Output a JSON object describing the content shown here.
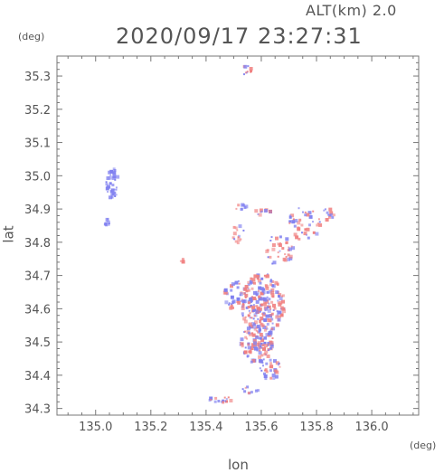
{
  "header": {
    "alt_label": "ALT(km)  2.0",
    "datetime": "2020/09/17 23:27:31"
  },
  "axes": {
    "y_unit": "(deg)",
    "x_unit": "(deg)",
    "xlabel": "lon",
    "ylabel": "lat"
  },
  "colors": {
    "frame": "#777777",
    "positive": "#f08080",
    "negative": "#8080f0"
  },
  "chart_data": {
    "type": "scatter",
    "xlabel": "lon",
    "ylabel": "lat",
    "xlim": [
      134.86,
      136.17
    ],
    "ylim": [
      34.28,
      35.36
    ],
    "x_ticks": [
      135.0,
      135.2,
      135.4,
      135.6,
      135.8,
      136.0
    ],
    "x_tick_labels": [
      "135.0",
      "135.2",
      "135.4",
      "135.6",
      "135.8",
      "136.0"
    ],
    "y_ticks": [
      34.3,
      34.4,
      34.5,
      34.6,
      34.7,
      34.8,
      34.9,
      35.0,
      35.1,
      35.2,
      35.3
    ],
    "y_tick_labels": [
      "34.3",
      "34.4",
      "34.5",
      "34.6",
      "34.7",
      "34.8",
      "34.9",
      "35.0",
      "35.1",
      "35.2",
      "35.3"
    ],
    "clusters": [
      {
        "lon": 135.06,
        "lat": 34.98,
        "rx": 0.025,
        "ry": 0.05,
        "n": 35,
        "mix": 0.0
      },
      {
        "lon": 135.04,
        "lat": 34.86,
        "rx": 0.012,
        "ry": 0.015,
        "n": 8,
        "mix": 0.0
      },
      {
        "lon": 135.54,
        "lat": 35.32,
        "rx": 0.02,
        "ry": 0.015,
        "n": 10,
        "mix": 0.7
      },
      {
        "lon": 135.52,
        "lat": 34.91,
        "rx": 0.02,
        "ry": 0.01,
        "n": 8,
        "mix": 0.3
      },
      {
        "lon": 135.6,
        "lat": 34.9,
        "rx": 0.03,
        "ry": 0.02,
        "n": 10,
        "mix": 0.5
      },
      {
        "lon": 135.51,
        "lat": 34.83,
        "rx": 0.025,
        "ry": 0.03,
        "n": 14,
        "mix": 0.5
      },
      {
        "lon": 135.75,
        "lat": 34.86,
        "rx": 0.06,
        "ry": 0.05,
        "n": 40,
        "mix": 0.5
      },
      {
        "lon": 135.84,
        "lat": 34.89,
        "rx": 0.02,
        "ry": 0.02,
        "n": 12,
        "mix": 0.4
      },
      {
        "lon": 135.66,
        "lat": 34.78,
        "rx": 0.05,
        "ry": 0.05,
        "n": 35,
        "mix": 0.5
      },
      {
        "lon": 135.31,
        "lat": 34.75,
        "rx": 0.01,
        "ry": 0.01,
        "n": 4,
        "mix": 0.7
      },
      {
        "lon": 135.6,
        "lat": 34.62,
        "rx": 0.08,
        "ry": 0.09,
        "n": 220,
        "mix": 0.55
      },
      {
        "lon": 135.58,
        "lat": 34.5,
        "rx": 0.06,
        "ry": 0.06,
        "n": 110,
        "mix": 0.5
      },
      {
        "lon": 135.5,
        "lat": 34.64,
        "rx": 0.04,
        "ry": 0.05,
        "n": 40,
        "mix": 0.4
      },
      {
        "lon": 135.63,
        "lat": 34.42,
        "rx": 0.04,
        "ry": 0.03,
        "n": 30,
        "mix": 0.5
      },
      {
        "lon": 135.45,
        "lat": 34.33,
        "rx": 0.05,
        "ry": 0.01,
        "n": 16,
        "mix": 0.5
      },
      {
        "lon": 135.55,
        "lat": 34.36,
        "rx": 0.04,
        "ry": 0.01,
        "n": 10,
        "mix": 0.3
      }
    ]
  }
}
